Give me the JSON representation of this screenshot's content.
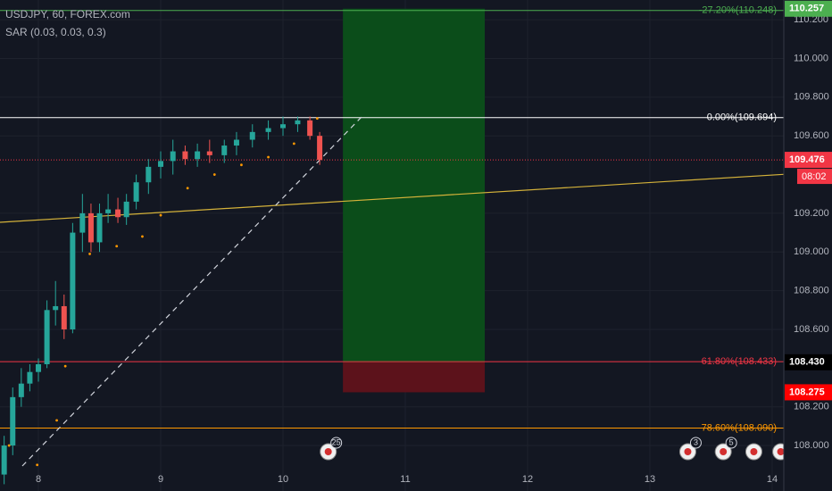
{
  "header": {
    "symbol": "USDJPY, 60, FOREX.com",
    "indicator": "SAR (0.03, 0.03, 0.3)"
  },
  "chart_data": {
    "type": "candlestick",
    "x": [
      7.72,
      7.79,
      7.86,
      7.93,
      8.0,
      8.07,
      8.14,
      8.21,
      8.28,
      8.36,
      8.43,
      8.5,
      8.57,
      8.65,
      8.72,
      8.8,
      8.9,
      9.0,
      9.1,
      9.2,
      9.3,
      9.4,
      9.52,
      9.62,
      9.75,
      9.88,
      10.0,
      10.12,
      10.22,
      10.3
    ],
    "open": [
      107.85,
      108.0,
      108.25,
      108.32,
      108.38,
      108.42,
      108.7,
      108.72,
      108.6,
      109.1,
      109.2,
      109.05,
      109.2,
      109.22,
      109.18,
      109.26,
      109.36,
      109.44,
      109.47,
      109.52,
      109.48,
      109.52,
      109.5,
      109.55,
      109.58,
      109.62,
      109.64,
      109.66,
      109.68,
      109.6
    ],
    "high": [
      108.05,
      108.3,
      108.4,
      108.42,
      108.45,
      108.75,
      108.85,
      108.78,
      109.15,
      109.3,
      109.25,
      109.25,
      109.3,
      109.28,
      109.3,
      109.4,
      109.48,
      109.52,
      109.58,
      109.55,
      109.56,
      109.58,
      109.58,
      109.62,
      109.66,
      109.68,
      109.7,
      109.7,
      109.7,
      109.62
    ],
    "low": [
      107.8,
      107.95,
      108.2,
      108.28,
      108.33,
      108.4,
      108.62,
      108.55,
      108.58,
      109.0,
      109.0,
      109.0,
      109.15,
      109.15,
      109.14,
      109.22,
      109.3,
      109.38,
      109.4,
      109.45,
      109.44,
      109.46,
      109.46,
      109.5,
      109.54,
      109.58,
      109.6,
      109.62,
      109.58,
      109.45
    ],
    "close": [
      108.0,
      108.25,
      108.32,
      108.38,
      108.42,
      108.7,
      108.72,
      108.6,
      109.1,
      109.2,
      109.05,
      109.2,
      109.22,
      109.18,
      109.26,
      109.36,
      109.44,
      109.47,
      109.52,
      109.48,
      109.52,
      109.5,
      109.55,
      109.58,
      109.62,
      109.64,
      109.66,
      109.68,
      109.6,
      109.476
    ],
    "up_color": "#26a69a",
    "down_color": "#ef5350",
    "sar": {
      "color": "#ff9800",
      "x": [
        7.76,
        7.99,
        8.15,
        8.22,
        8.42,
        8.64,
        8.85,
        9.0,
        9.22,
        9.44,
        9.66,
        9.88,
        10.09,
        10.28
      ],
      "values": [
        108.0,
        107.9,
        108.13,
        108.41,
        108.99,
        109.03,
        109.08,
        109.19,
        109.33,
        109.4,
        109.45,
        109.49,
        109.56,
        109.69
      ]
    },
    "xlim": [
      7.686,
      14.095
    ],
    "ylim": [
      107.765,
      110.302
    ],
    "xticks": [
      8,
      9,
      10,
      11,
      12,
      13,
      14
    ],
    "yticks": [
      {
        "value": 108,
        "label": "108.000"
      },
      {
        "value": 108.2,
        "label": "108.200"
      },
      {
        "value": 108.6,
        "label": "108.600"
      },
      {
        "value": 108.8,
        "label": "108.800"
      },
      {
        "value": 109,
        "label": "109.000"
      },
      {
        "value": 109.2,
        "label": "109.200"
      },
      {
        "value": 109.6,
        "label": "109.600"
      },
      {
        "value": 109.8,
        "label": "109.800"
      },
      {
        "value": 110,
        "label": "110.000"
      },
      {
        "value": 110.2,
        "label": "110.200"
      }
    ],
    "grid": true,
    "fib_levels": [
      {
        "label": "-27.20%(110.248)",
        "value": 110.248,
        "color": "#4caf50"
      },
      {
        "label": "0.00%(109.694)",
        "value": 109.694,
        "color": "#ffffff"
      },
      {
        "label": "61.80%(108.433)",
        "value": 108.433,
        "color": "#f23645"
      },
      {
        "label": "78.60%(108.090)",
        "value": 108.09,
        "color": "#ff9800"
      }
    ],
    "price_labels": [
      {
        "value": 110.257,
        "color": "#4caf50"
      },
      {
        "value": 109.476,
        "color": "#f23645",
        "line": "dotted"
      },
      {
        "value": 108.43,
        "label": "108.430",
        "color": "#000000"
      },
      {
        "value": 108.275,
        "color": "#ff0000"
      }
    ],
    "countdown": "08:02",
    "position": {
      "x": [
        10.49,
        11.65
      ],
      "entry": 108.43,
      "target": 110.257,
      "stop": 108.275,
      "profit_color": "#0b4d1a",
      "loss_color": "#5c121b"
    },
    "events": [
      {
        "x": 10.37,
        "count": 25
      },
      {
        "x": 13.31,
        "count": 3
      },
      {
        "x": 13.6,
        "count": 5
      },
      {
        "x": 13.85
      },
      {
        "x": 14.07
      }
    ]
  }
}
